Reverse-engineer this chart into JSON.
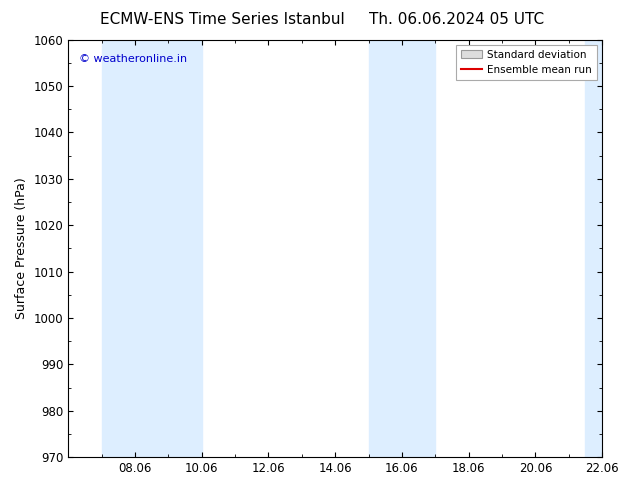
{
  "title_left": "ECMW-ENS Time Series Istanbul",
  "title_right": "Th. 06.06.2024 05 UTC",
  "ylabel": "Surface Pressure (hPa)",
  "ylim": [
    970,
    1060
  ],
  "yticks": [
    970,
    980,
    990,
    1000,
    1010,
    1020,
    1030,
    1040,
    1050,
    1060
  ],
  "xlim": [
    0,
    16
  ],
  "xtick_labels": [
    "08.06",
    "10.06",
    "12.06",
    "14.06",
    "16.06",
    "18.06",
    "20.06",
    "22.06"
  ],
  "xtick_positions_days": [
    2,
    4,
    6,
    8,
    10,
    12,
    14,
    16
  ],
  "shaded_bands": [
    {
      "x_start_day": 1.0,
      "x_end_day": 2.0
    },
    {
      "x_start_day": 2.0,
      "x_end_day": 4.0
    },
    {
      "x_start_day": 9.0,
      "x_end_day": 10.0
    },
    {
      "x_start_day": 10.0,
      "x_end_day": 11.0
    },
    {
      "x_start_day": 15.5,
      "x_end_day": 16.0
    }
  ],
  "shade_color": "#ddeeff",
  "watermark_text": "© weatheronline.in",
  "watermark_color": "#0000cc",
  "legend_std_label": "Standard deviation",
  "legend_ens_label": "Ensemble mean run",
  "legend_std_facecolor": "#dddddd",
  "legend_std_edgecolor": "#999999",
  "legend_ens_color": "#dd0000",
  "bg_color": "#ffffff",
  "title_fontsize": 11,
  "tick_fontsize": 8.5,
  "ylabel_fontsize": 9,
  "watermark_fontsize": 8
}
